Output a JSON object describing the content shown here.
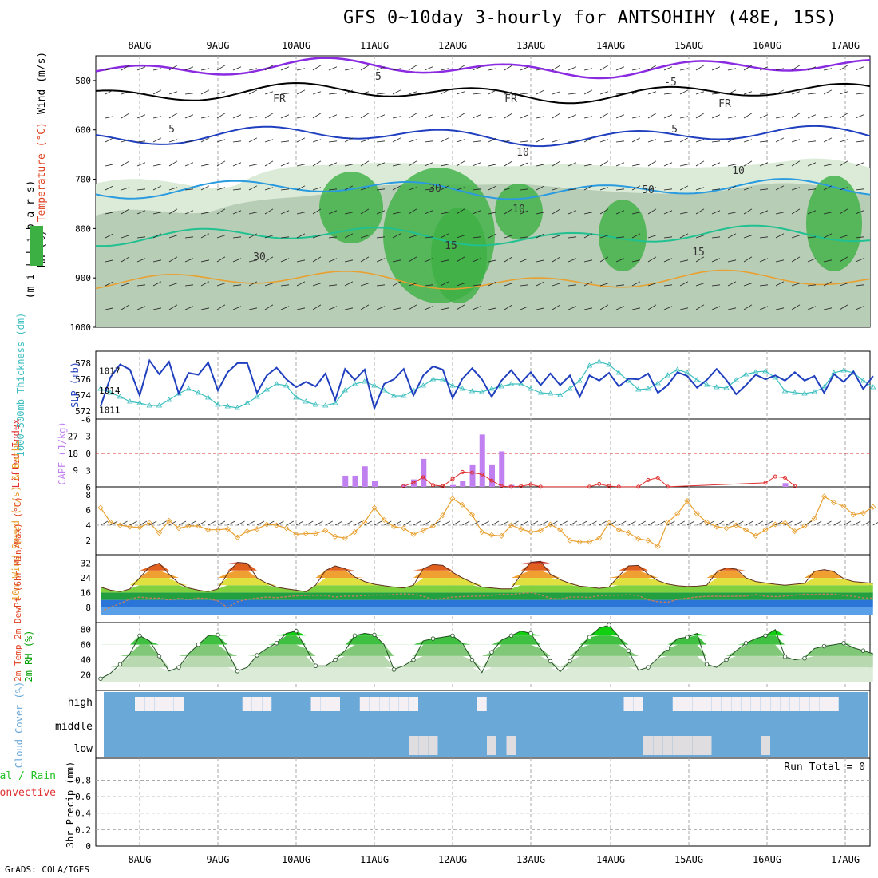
{
  "title": "GFS 0~10day 3-hourly for ANTSOHIHY (48E, 15S)",
  "footer": "GrADS: COLA/IGES",
  "dates": [
    "8AUG",
    "9AUG",
    "10AUG",
    "11AUG",
    "12AUG",
    "13AUG",
    "14AUG",
    "15AUG",
    "16AUG",
    "17AUG"
  ],
  "colors": {
    "rh_green": "#3cb043",
    "rh_dark": "#a8c0a8",
    "slp": "#1f3fbf",
    "thickness": "#3fbfbf",
    "cape": "#c080f0",
    "lifted": "#e03030",
    "wind10": "#e8a030",
    "cloud_bg": "#6aa8d8",
    "temp": "#e04020",
    "precip_total": "#22c022",
    "precip_conv": "#e03030"
  },
  "chart_data": [
    {
      "type": "heatmap",
      "panel": "upper-air",
      "ylabels": [
        "Wind (m/s)",
        "Temperature (°C)",
        "RH (%)",
        "(m i l l i b a r s)"
      ],
      "yticks": [
        "500",
        "600",
        "700",
        "800",
        "900",
        "1000"
      ],
      "contour_labels": [
        "-5",
        "FR",
        "FR",
        "FR",
        "-5",
        "5",
        "5",
        "10",
        "15",
        "15",
        "10",
        "30",
        "30",
        "50",
        "10"
      ]
    },
    {
      "type": "line",
      "panel": "slp-thickness",
      "ylabel_left": "1000-500mb Thickness (dm)",
      "ylabel_right": "SLP (mb)",
      "yticks_left": [
        "578",
        "576",
        "574",
        "572"
      ],
      "yticks_right": [
        "1017",
        "1014",
        "1011"
      ],
      "series": [
        {
          "name": "SLP (mb)",
          "values": [
            1011.5,
            1016,
            1018,
            1017.2,
            1013.2,
            1017.2,
            1018.6,
            1016.5,
            1018.4,
            1013.5,
            1016.7,
            1018.2,
            1016.4,
            1018.3,
            1014,
            1016.8,
            1018.2,
            1016.5,
            1018.2,
            1013.6,
            1016.3,
            1017.5,
            1015.7,
            1017.4,
            1014.5,
            1015.3,
            1014.6,
            1016.6,
            1012.5,
            1015,
            1017.3,
            1015.6,
            1017.2,
            1011.2,
            1015,
            1017.4,
            1015.7,
            1017.3,
            1013.2,
            1016.3,
            1017.7,
            1015.6,
            1017.2,
            1012.8,
            1015.8,
            1017.4,
            1015.7,
            1017.3,
            1013,
            1015.5,
            1017.1,
            1015.2,
            1016.8,
            1013.2,
            1014.8,
            1016.6,
            1014.8,
            1016.3,
            1013,
            1014.5,
            1016.3,
            1015.5,
            1016.7,
            1014.6,
            1015.8,
            1017.3,
            1015.7,
            1016.6,
            1013.6,
            1014.8,
            1016.8,
            1015.6,
            1016.2,
            1014.4,
            1015.6,
            1017.3,
            1015.6,
            1016.6,
            1013.4,
            1014.8,
            1016.4,
            1015.7,
            1016.3,
            1014.6,
            1015.5,
            1016.8,
            1015.5,
            1016.2,
            1013.6,
            1014.6,
            1016.5,
            1015.3,
            1016.9,
            1014.2,
            1016.2,
            1017.4
          ]
        },
        {
          "name": "1000-500mb Thickness (dm)",
          "values": [
            574.8,
            574.3,
            573.8,
            573.2,
            573,
            572.8,
            572.7,
            572.7,
            573.4,
            574.2,
            574.8,
            575,
            574.3,
            573.7,
            572.8,
            572.6,
            572.4,
            572.4,
            573,
            573.8,
            574.7,
            575.4,
            575.2,
            574.6,
            573.7,
            573.2,
            572.8,
            572.7,
            573,
            573.7,
            574.6,
            575.4,
            575.7,
            575.2,
            574.6,
            574.3,
            573.9,
            573.9,
            574.6,
            575.2,
            576,
            576.6,
            575.9,
            575.2,
            574.8,
            574.5,
            574.4,
            574.2,
            574.8,
            575.1,
            575.4,
            575.4,
            574.8,
            574.5,
            574.3,
            574.2,
            574,
            574.8,
            575.8,
            576.7,
            577.7,
            578.2,
            577.8,
            576.8,
            575.8,
            575.1,
            574.7,
            574.8,
            575.5,
            576.5,
            577.2,
            577.4,
            576.8,
            575.9,
            575.3,
            575,
            574.9,
            575.2,
            575.9,
            576.6,
            576.9,
            577,
            576.2,
            575.1,
            574.5,
            574.3,
            574.2,
            574.4,
            575,
            575.9,
            576.8,
            577.1,
            576.8,
            575.8,
            575,
            574.4
          ]
        }
      ]
    },
    {
      "type": "bar",
      "panel": "cape-li",
      "ylabel_left": "Lifted Index",
      "ylabel_right": "CAPE (J/kg)",
      "yticks_left": [
        "-6",
        "-3",
        "0",
        "3",
        "6"
      ],
      "yticks_right": [
        "27",
        "18",
        "9"
      ],
      "x": [
        27,
        28,
        29,
        30,
        33,
        34,
        35,
        37,
        38,
        39,
        40,
        41,
        57,
        58,
        59,
        60,
        61,
        62,
        63
      ],
      "cape": [
        6,
        6,
        11,
        3,
        1,
        4,
        15,
        1,
        3,
        12,
        28,
        12,
        19,
        1,
        2
      ],
      "cape_x": [
        27,
        28,
        29,
        30,
        33,
        34,
        35,
        38,
        39,
        40,
        41,
        42,
        43,
        44,
        72
      ],
      "li_x": [
        33,
        34,
        35,
        36,
        37,
        38,
        39,
        40,
        41,
        42,
        43,
        44,
        45,
        46,
        47,
        52,
        53,
        54,
        55,
        57,
        58,
        59,
        60,
        70,
        71,
        72,
        73
      ],
      "li": [
        5.8,
        5.2,
        4.2,
        5.6,
        5.8,
        4.5,
        3.3,
        3.4,
        3.7,
        4.8,
        5.8,
        5.9,
        5.8,
        5.5,
        5.9,
        5.9,
        5.4,
        5.8,
        5.9,
        5.9,
        4.7,
        4.3,
        5.9,
        5.2,
        4.1,
        4.3,
        5.8
      ]
    },
    {
      "type": "line",
      "panel": "wind10",
      "ylabel": "10m Wind Speed (m/s) & Barbs",
      "yticks": [
        "8",
        "6",
        "4",
        "2"
      ],
      "values": [
        6.3,
        4.4,
        4,
        3.8,
        4.1,
        3.7,
        4.3,
        3,
        3.9,
        4.6,
        3.6,
        3.9,
        3.7,
        3.9,
        3.4,
        3.4,
        3.9,
        3.5,
        2.4,
        3.2,
        2.4,
        3.5,
        4.1,
        4,
        3.6,
        1.5,
        2.8,
        2.9,
        2.9,
        2.9,
        3.3,
        2.5,
        2.3,
        2.5,
        3.1,
        4.4,
        6.3,
        5.4,
        4.7,
        3.8,
        3.6,
        3.3,
        2.8,
        3.3,
        3.9,
        5.3,
        6.4,
        7.5,
        6.7,
        5.4,
        4.3,
        3.1,
        2.7,
        2.6,
        3.5,
        4,
        3.5,
        3.1,
        2.4,
        3.3,
        4.1,
        3.4,
        2.3,
        2,
        1.8,
        1.8,
        2.3,
        3.5,
        4.3,
        3.4,
        3,
        2.9,
        2.2,
        2,
        1.2,
        2,
        4.4,
        5.5,
        7.2,
        6.8,
        5.5,
        4.4,
        3.8,
        3.2,
        3.6,
        4,
        3.4,
        2.6,
        3,
        3.4,
        4.1,
        4.3,
        4.4,
        3.2,
        3.9,
        4.9,
        6.5,
        7.8,
        7,
        6.5,
        5.7,
        5.4,
        5.6,
        6.4,
        7.6
      ]
    },
    {
      "type": "area",
      "panel": "temp-dewpt",
      "ylabel": "2m Temp 2m DewPt (6hr Min/Max) (°C)",
      "yticks": [
        "32",
        "24",
        "16",
        "8"
      ],
      "temp": [
        19,
        17.3,
        16.5,
        18,
        24,
        30,
        32,
        26,
        21,
        18.5,
        17.3,
        16.5,
        18,
        26.5,
        32.5,
        32,
        24,
        21,
        19,
        18,
        17.3,
        16.5,
        20,
        28,
        30.5,
        29,
        24.5,
        22,
        20.5,
        19.7,
        19,
        18.5,
        20,
        29,
        31.3,
        30.8,
        27,
        24,
        21.5,
        19,
        18.5,
        18,
        18,
        26,
        32.5,
        33,
        26,
        23,
        21,
        19.5,
        19,
        18.3,
        19,
        25,
        30.5,
        30.8,
        26,
        22.5,
        20.6,
        19.7,
        19.3,
        19.5,
        20,
        27,
        29.5,
        28.8,
        24,
        22,
        21.2,
        20.5,
        20,
        20.5,
        21,
        27.5,
        28.5,
        27.4,
        23.5,
        22,
        21.5,
        21
      ],
      "dewpt": [
        5.5,
        8,
        10,
        12.5,
        13.5,
        13,
        13,
        12,
        12.8,
        12.2,
        13,
        12.7,
        11.4,
        7.8,
        11,
        12.3,
        13,
        13.5,
        13.2,
        13.7,
        14.2,
        14.4,
        14.4,
        14.4,
        13.5,
        14.1,
        14,
        14.4,
        14.7,
        14.6,
        15,
        15.3,
        15,
        13.9,
        12.2,
        12.8,
        13.5,
        13.8,
        14,
        14.1,
        14.5,
        15.1,
        15,
        15.5,
        16,
        14.7,
        12.9,
        12.5,
        13.5,
        13.6,
        13.4,
        14.3,
        14.5,
        14.6,
        14.8,
        14.4,
        12,
        11,
        10.7,
        12.3,
        12.9,
        13.6,
        13.9,
        14,
        13.9,
        14,
        14.1,
        14.9,
        14,
        13.8,
        14.1,
        14.6,
        15.1,
        14.9,
        15.2,
        15.1,
        14.4,
        13.9,
        13.1,
        12.9,
        13.2
      ]
    },
    {
      "type": "area",
      "panel": "rh2m",
      "ylabel": "2m RH (%)",
      "yticks": [
        "80",
        "60",
        "40",
        "20"
      ],
      "values": [
        15,
        22,
        34,
        48,
        62,
        72,
        65,
        45,
        25,
        20,
        30,
        48,
        60,
        65,
        72,
        73,
        50,
        25,
        18,
        30,
        46,
        55,
        62,
        70,
        75,
        78,
        55,
        40,
        32,
        32,
        40,
        52,
        63,
        72,
        75,
        73,
        60,
        42,
        27,
        32,
        40,
        55,
        65,
        68,
        70,
        72,
        75,
        62,
        40,
        23,
        35,
        50,
        66,
        72,
        78,
        82,
        75,
        55,
        38,
        24,
        22,
        38,
        56,
        70,
        80,
        82,
        86,
        70,
        52,
        38,
        26,
        30,
        42,
        55,
        63,
        68,
        70,
        75,
        55,
        34,
        30,
        40,
        52,
        58,
        62,
        68,
        72,
        80,
        62,
        44,
        40,
        42,
        48,
        55,
        58,
        60,
        62,
        60,
        56,
        52,
        48,
        36
      ]
    },
    {
      "type": "bar",
      "panel": "cloud-cover",
      "ylabel": "Cloud Cover (%)",
      "yticks": [
        "high",
        "middle",
        "low"
      ],
      "high_x": [
        6,
        7,
        8,
        9,
        10,
        17,
        18,
        19,
        24,
        25,
        26,
        29,
        30,
        31,
        32,
        33,
        34,
        41,
        56,
        57,
        61,
        62,
        63,
        64,
        65,
        66,
        67,
        68,
        69,
        70,
        71,
        72,
        73,
        74,
        75,
        76,
        77
      ],
      "low_x": [
        34,
        35,
        36,
        42,
        44,
        58,
        59,
        60,
        61,
        62,
        63,
        64,
        70
      ]
    },
    {
      "type": "bar",
      "panel": "precip",
      "ylabel": "3hr Precip (mm)",
      "ylabel_left": "Total / Rain",
      "ylabel_left2": "Convective",
      "yticks": [
        "0.8",
        "0.6",
        "0.4",
        "0.2",
        "0"
      ],
      "annotation": "Run Total = 0"
    }
  ]
}
